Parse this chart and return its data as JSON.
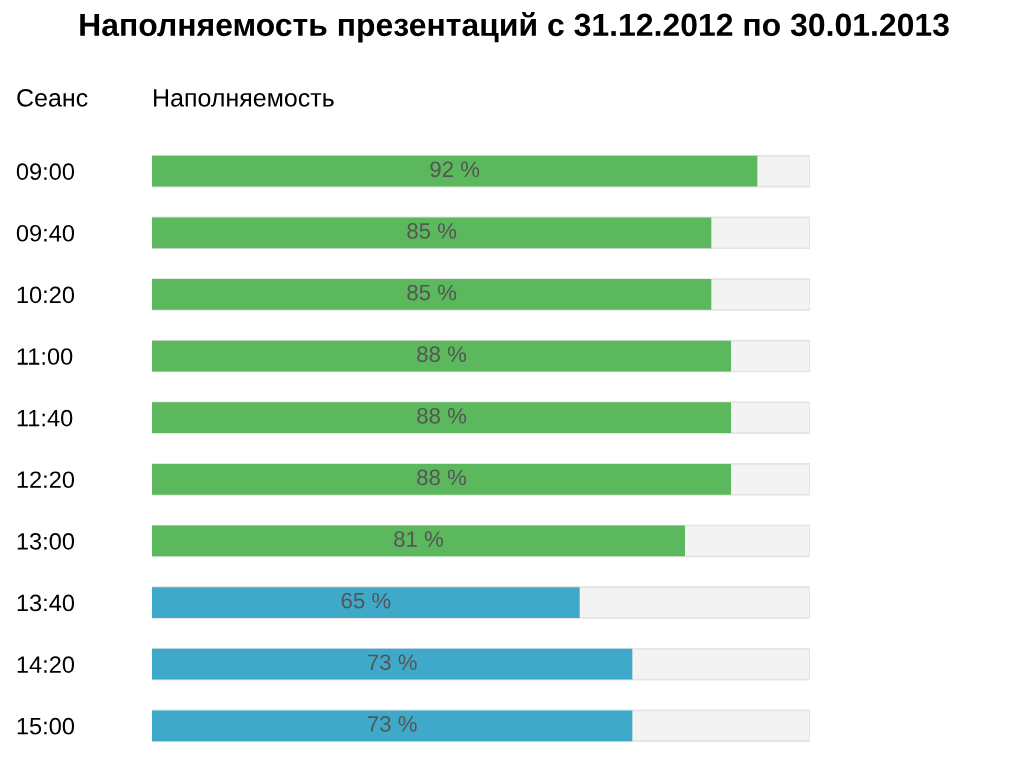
{
  "chart_data": {
    "type": "bar",
    "orientation": "horizontal",
    "title": "Наполняемость презентаций с 31.12.2012 по 30.01.2013",
    "xlabel": "Наполняемость",
    "ylabel": "Сеанс",
    "categories": [
      "09:00",
      "09:40",
      "10:20",
      "11:00",
      "11:40",
      "12:20",
      "13:00",
      "13:40",
      "14:20",
      "15:00"
    ],
    "values": [
      92,
      85,
      85,
      88,
      88,
      88,
      81,
      65,
      73,
      73
    ],
    "value_labels": [
      "92 %",
      "85 %",
      "85 %",
      "88 %",
      "88 %",
      "88 %",
      "81 %",
      "65 %",
      "73 %",
      "73 %"
    ],
    "colors": [
      "#5cb85c",
      "#5cb85c",
      "#5cb85c",
      "#5cb85c",
      "#5cb85c",
      "#5cb85c",
      "#5cb85c",
      "#3fa9c9",
      "#3fa9c9",
      "#3fa9c9"
    ],
    "xlim": [
      0,
      100
    ],
    "tick_labels": "y",
    "grid": false,
    "legend": false
  }
}
